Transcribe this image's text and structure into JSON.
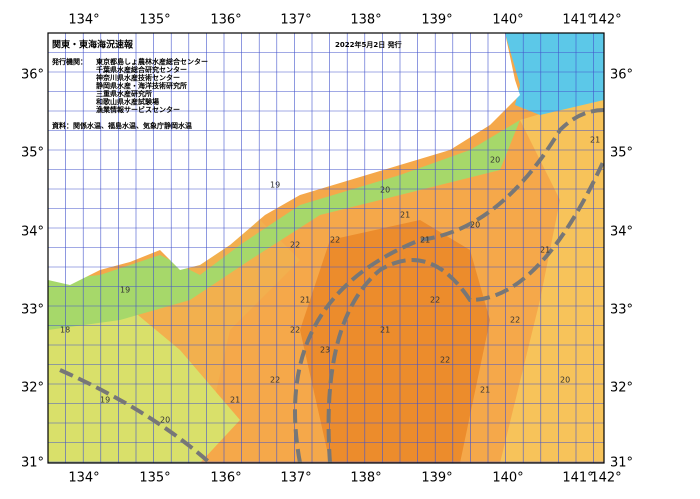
{
  "map": {
    "title": "関東・東海海況速報",
    "date": "2022年5月2日 発行",
    "issuers_label": "発行機関：",
    "issuers": [
      "東京都島しょ農林水産総合センター",
      "千葉県水産総合研究センター",
      "神奈川県水産技術センター",
      "静岡県水産・海洋技術研究所",
      "三重県水産研究所",
      "和歌山県水産試験場",
      "漁業情報サービスセンター"
    ],
    "source": "資料：関係水温、福島水温、気象庁静岡水温",
    "lon_labels": [
      "134°",
      "135°",
      "136°",
      "137°",
      "138°",
      "139°",
      "140°",
      "141°",
      "142°"
    ],
    "lat_labels": [
      "36°",
      "35°",
      "34°",
      "33°",
      "32°",
      "31°"
    ],
    "contour_labels": [
      "19",
      "20",
      "21",
      "22",
      "22",
      "21",
      "20",
      "21",
      "22",
      "23",
      "22",
      "21",
      "20",
      "19",
      "18",
      "21",
      "22",
      "22",
      "21",
      "20",
      "21",
      "22",
      "21",
      "20",
      "19"
    ]
  }
}
